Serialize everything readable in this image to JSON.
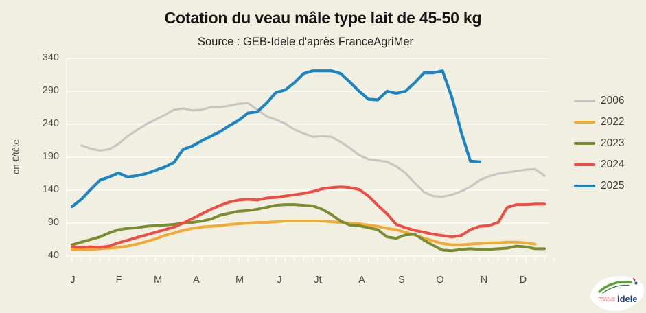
{
  "header": {
    "title": "Cotation du veau mâle type lait de 45-50 kg",
    "subtitle": "Source : GEB-Idele d'après FranceAgriMer"
  },
  "logo": {
    "small_line1": "INSTITUT DE",
    "small_line2": "L'ÉLEVAGE",
    "main": "idele"
  },
  "chart_data": {
    "type": "line",
    "title": "Cotation du veau mâle type lait de 45-50 kg",
    "subtitle": "Source : GEB-Idele d'après FranceAgriMer",
    "ylabel": "en €/tête",
    "ylim": [
      40,
      340
    ],
    "yticks": [
      340,
      290,
      240,
      190,
      140,
      90,
      40
    ],
    "x_unit": "week-of-year",
    "month_labels": [
      "J",
      "F",
      "M",
      "A",
      "M",
      "J",
      "Jt",
      "A",
      "S",
      "O",
      "N",
      "D"
    ],
    "grid": true,
    "grid_color": "#ffffff",
    "background": "#f0efe2",
    "legend_position": "right",
    "series": [
      {
        "name": "2006",
        "color": "#c7c6c3",
        "line_width": 3.2,
        "start_week": 2,
        "values": [
          208,
          203,
          200,
          202,
          210,
          222,
          231,
          240,
          247,
          254,
          262,
          264,
          261,
          262,
          266,
          266,
          268,
          271,
          272,
          262,
          252,
          247,
          241,
          232,
          226,
          221,
          222,
          221,
          213,
          204,
          193,
          187,
          185,
          183,
          176,
          166,
          151,
          137,
          131,
          130,
          133,
          138,
          145,
          155,
          161,
          165,
          167,
          169,
          171,
          172,
          162
        ]
      },
      {
        "name": "2022",
        "color": "#f1ab32",
        "line_width": 4,
        "start_week": 1,
        "values": [
          50,
          50,
          50,
          51,
          52,
          53,
          55,
          58,
          62,
          66,
          71,
          75,
          79,
          82,
          84,
          85,
          86,
          88,
          89,
          90,
          91,
          91,
          92,
          93,
          93,
          93,
          93,
          93,
          92,
          91,
          90,
          89,
          87,
          85,
          82,
          80,
          76,
          72,
          67,
          63,
          59,
          57,
          57,
          58,
          59,
          60,
          60,
          61,
          61,
          60,
          58
        ]
      },
      {
        "name": "2023",
        "color": "#7b8d31",
        "line_width": 4,
        "start_week": 1,
        "values": [
          57,
          61,
          65,
          69,
          75,
          80,
          82,
          83,
          85,
          86,
          87,
          88,
          90,
          91,
          93,
          96,
          102,
          105,
          108,
          109,
          111,
          114,
          117,
          118,
          118,
          117,
          116,
          111,
          103,
          93,
          87,
          86,
          83,
          80,
          69,
          67,
          72,
          73,
          64,
          56,
          49,
          48,
          50,
          51,
          50,
          50,
          51,
          52,
          55,
          54,
          51,
          51
        ]
      },
      {
        "name": "2024",
        "color": "#f14b42",
        "line_width": 4,
        "start_week": 1,
        "values": [
          54,
          53,
          54,
          53,
          55,
          60,
          64,
          68,
          72,
          76,
          80,
          84,
          90,
          97,
          104,
          111,
          117,
          122,
          125,
          126,
          125,
          128,
          129,
          131,
          133,
          135,
          138,
          142,
          144,
          145,
          144,
          141,
          131,
          117,
          104,
          88,
          83,
          79,
          76,
          73,
          71,
          69,
          71,
          80,
          85,
          86,
          91,
          114,
          118,
          118,
          119,
          119
        ]
      },
      {
        "name": "2025",
        "color": "#1a84c4",
        "line_width": 4.2,
        "start_week": 1,
        "values": [
          115,
          126,
          141,
          155,
          160,
          166,
          160,
          162,
          165,
          170,
          175,
          182,
          202,
          207,
          215,
          222,
          229,
          238,
          246,
          257,
          259,
          272,
          288,
          292,
          303,
          317,
          321,
          321,
          321,
          317,
          304,
          290,
          278,
          277,
          290,
          287,
          290,
          303,
          318,
          318,
          321,
          281,
          229,
          184,
          183
        ]
      }
    ]
  }
}
